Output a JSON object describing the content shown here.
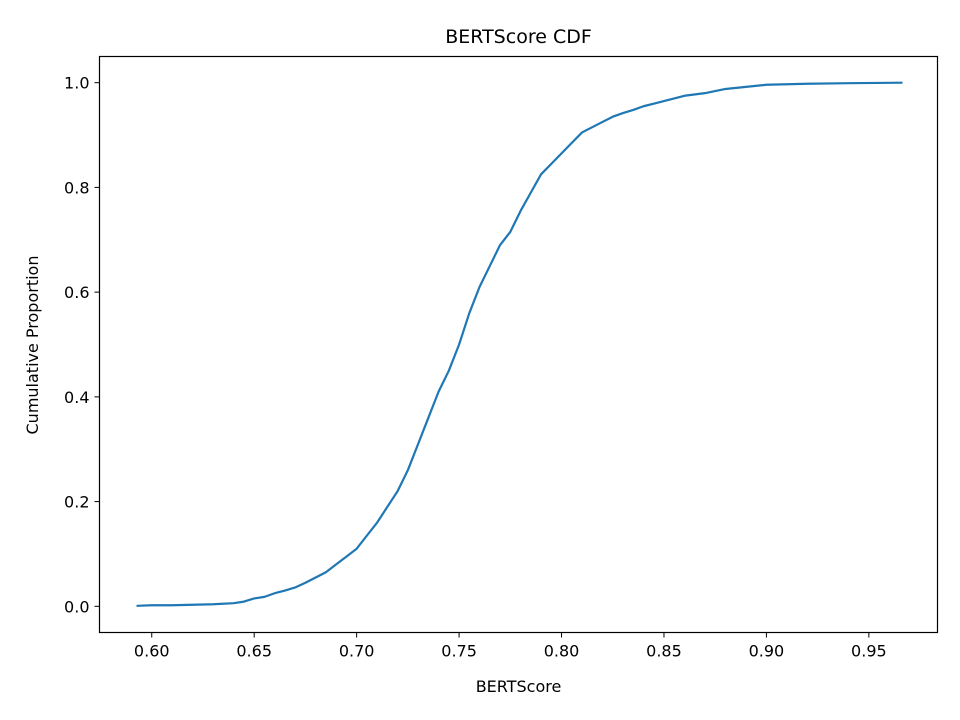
{
  "chart_data": {
    "type": "line",
    "title": "BERTScore CDF",
    "xlabel": "BERTScore",
    "ylabel": "Cumulative Proportion",
    "xlim": [
      0.5745,
      0.9835
    ],
    "ylim": [
      -0.05,
      1.05
    ],
    "xticks": [
      0.6,
      0.65,
      0.7,
      0.75,
      0.8,
      0.85,
      0.9,
      0.95
    ],
    "xtick_labels": [
      "0.60",
      "0.65",
      "0.70",
      "0.75",
      "0.80",
      "0.85",
      "0.90",
      "0.95"
    ],
    "yticks": [
      0.0,
      0.2,
      0.4,
      0.6,
      0.8,
      1.0
    ],
    "ytick_labels": [
      "0.0",
      "0.2",
      "0.4",
      "0.6",
      "0.8",
      "1.0"
    ],
    "grid": false,
    "series": [
      {
        "color": "#1f77b4",
        "x": [
          0.593,
          0.6,
          0.61,
          0.62,
          0.63,
          0.64,
          0.645,
          0.65,
          0.655,
          0.66,
          0.665,
          0.67,
          0.675,
          0.68,
          0.685,
          0.69,
          0.695,
          0.7,
          0.705,
          0.71,
          0.715,
          0.72,
          0.725,
          0.73,
          0.735,
          0.74,
          0.745,
          0.75,
          0.755,
          0.76,
          0.765,
          0.77,
          0.775,
          0.78,
          0.785,
          0.79,
          0.795,
          0.8,
          0.805,
          0.81,
          0.815,
          0.82,
          0.825,
          0.83,
          0.835,
          0.84,
          0.845,
          0.85,
          0.86,
          0.87,
          0.88,
          0.89,
          0.9,
          0.92,
          0.94,
          0.966
        ],
        "y": [
          0.001,
          0.002,
          0.002,
          0.003,
          0.004,
          0.006,
          0.009,
          0.015,
          0.018,
          0.025,
          0.03,
          0.036,
          0.045,
          0.055,
          0.065,
          0.08,
          0.095,
          0.11,
          0.135,
          0.16,
          0.19,
          0.22,
          0.26,
          0.31,
          0.36,
          0.41,
          0.45,
          0.5,
          0.56,
          0.61,
          0.65,
          0.69,
          0.715,
          0.755,
          0.79,
          0.825,
          0.845,
          0.865,
          0.885,
          0.905,
          0.915,
          0.925,
          0.935,
          0.942,
          0.948,
          0.955,
          0.96,
          0.965,
          0.975,
          0.98,
          0.988,
          0.992,
          0.996,
          0.998,
          0.999,
          1.0
        ]
      }
    ]
  }
}
